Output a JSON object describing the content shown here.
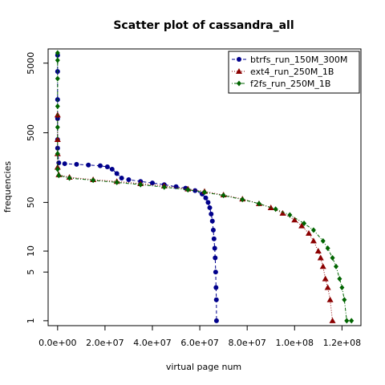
{
  "chart_data": {
    "type": "scatter",
    "title": "Scatter plot of cassandra_all",
    "xlabel": "virtual page num",
    "ylabel": "frequencies",
    "x_scale": "linear",
    "y_scale": "log",
    "xlim": [
      -4000000,
      128000000
    ],
    "ylim": [
      0.85,
      8000
    ],
    "x_ticks": [
      0,
      20000000,
      40000000,
      60000000,
      80000000,
      100000000,
      120000000
    ],
    "x_tick_labels": [
      "0.0e+00",
      "2.0e+07",
      "4.0e+07",
      "6.0e+07",
      "8.0e+07",
      "1.0e+08",
      "1.2e+08"
    ],
    "y_ticks": [
      1,
      5,
      10,
      50,
      500,
      5000
    ],
    "y_tick_labels": [
      "1",
      "5",
      "10",
      "50",
      "500",
      "5000"
    ],
    "legend_position": "top-right",
    "grid": false,
    "series": [
      {
        "name": "btrfs_run_150M_300M",
        "color": "#00008b",
        "marker": "circle",
        "line": "dashed",
        "points": [
          [
            0,
            6500
          ],
          [
            0,
            3800
          ],
          [
            0,
            1500
          ],
          [
            0,
            800
          ],
          [
            0,
            400
          ],
          [
            0,
            300
          ],
          [
            500000,
            185
          ],
          [
            3000000,
            180
          ],
          [
            8000000,
            176
          ],
          [
            13000000,
            172
          ],
          [
            18000000,
            168
          ],
          [
            21000000,
            162
          ],
          [
            23000000,
            150
          ],
          [
            25000000,
            130
          ],
          [
            27000000,
            112
          ],
          [
            30000000,
            106
          ],
          [
            35000000,
            100
          ],
          [
            40000000,
            95
          ],
          [
            45000000,
            90
          ],
          [
            50000000,
            84
          ],
          [
            54000000,
            80
          ],
          [
            58000000,
            74
          ],
          [
            61000000,
            66
          ],
          [
            62500000,
            58
          ],
          [
            63500000,
            50
          ],
          [
            64200000,
            42
          ],
          [
            64800000,
            34
          ],
          [
            65300000,
            27
          ],
          [
            65700000,
            20
          ],
          [
            66000000,
            15
          ],
          [
            66300000,
            11
          ],
          [
            66500000,
            8
          ],
          [
            66700000,
            5
          ],
          [
            66850000,
            3
          ],
          [
            67000000,
            2
          ],
          [
            67050000,
            1
          ]
        ]
      },
      {
        "name": "ext4_run_250M_1B",
        "color": "#8b0000",
        "marker": "triangle",
        "line": "dotted",
        "points": [
          [
            0,
            900
          ],
          [
            0,
            400
          ],
          [
            0,
            250
          ],
          [
            0,
            160
          ],
          [
            500000,
            125
          ],
          [
            5000000,
            115
          ],
          [
            15000000,
            106
          ],
          [
            25000000,
            100
          ],
          [
            35000000,
            93
          ],
          [
            45000000,
            86
          ],
          [
            55000000,
            78
          ],
          [
            62000000,
            72
          ],
          [
            70000000,
            64
          ],
          [
            78000000,
            56
          ],
          [
            85000000,
            48
          ],
          [
            90000000,
            42
          ],
          [
            95000000,
            35
          ],
          [
            100000000,
            28
          ],
          [
            103000000,
            23
          ],
          [
            106000000,
            18
          ],
          [
            108000000,
            14
          ],
          [
            110000000,
            10
          ],
          [
            111000000,
            8
          ],
          [
            112000000,
            6
          ],
          [
            113000000,
            4
          ],
          [
            114000000,
            3
          ],
          [
            115000000,
            2
          ],
          [
            116000000,
            1
          ]
        ]
      },
      {
        "name": "f2fs_run_250M_1B",
        "color": "#006400",
        "marker": "diamond",
        "line": "dotdash",
        "points": [
          [
            0,
            7000
          ],
          [
            0,
            5500
          ],
          [
            0,
            3000
          ],
          [
            0,
            1200
          ],
          [
            0,
            600
          ],
          [
            0,
            250
          ],
          [
            0,
            150
          ],
          [
            500000,
            122
          ],
          [
            5000000,
            112
          ],
          [
            15000000,
            104
          ],
          [
            25000000,
            97
          ],
          [
            35000000,
            90
          ],
          [
            45000000,
            83
          ],
          [
            55000000,
            76
          ],
          [
            62000000,
            70
          ],
          [
            70000000,
            63
          ],
          [
            78000000,
            55
          ],
          [
            85000000,
            48
          ],
          [
            92000000,
            40
          ],
          [
            98000000,
            33
          ],
          [
            104000000,
            25
          ],
          [
            108000000,
            20
          ],
          [
            112000000,
            14
          ],
          [
            114000000,
            11
          ],
          [
            116000000,
            8
          ],
          [
            117500000,
            6
          ],
          [
            119000000,
            4
          ],
          [
            120000000,
            3
          ],
          [
            121000000,
            2
          ],
          [
            122000000,
            1
          ],
          [
            124000000,
            1
          ]
        ]
      }
    ]
  }
}
